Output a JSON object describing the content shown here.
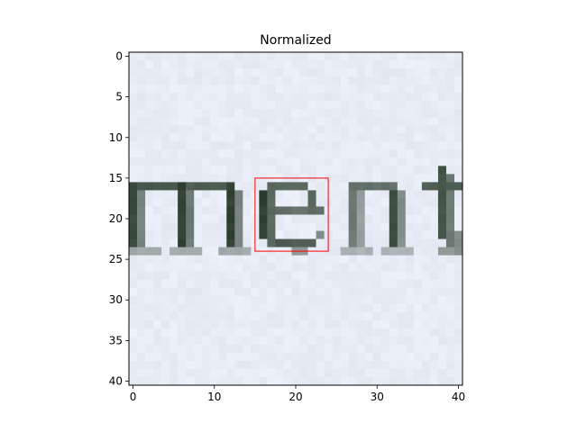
{
  "chart_data": {
    "type": "heatmap",
    "title": "Normalized",
    "xlabel": "",
    "ylabel": "",
    "grid": false,
    "xlim": [
      -0.5,
      40.5
    ],
    "ylim": [
      40.5,
      -0.5
    ],
    "y_axis_inverted": true,
    "grid_size": [
      41,
      41
    ],
    "x_ticks": [
      0,
      10,
      20,
      30,
      40
    ],
    "x_tick_labels": [
      "0",
      "10",
      "20",
      "30",
      "40"
    ],
    "y_ticks": [
      0,
      5,
      10,
      15,
      20,
      25,
      30,
      35,
      40
    ],
    "y_tick_labels": [
      "0",
      "5",
      "10",
      "15",
      "20",
      "25",
      "30",
      "35",
      "40"
    ],
    "image_content": "cropped grayscale text image showing letters 'ment'",
    "background_color": "#e8ecf6",
    "ink_color": "#1c2e1e",
    "annotations": [
      {
        "type": "rectangle",
        "color": "#ff0000",
        "x0": 15,
        "x1": 24,
        "y0": 15,
        "y1": 24
      }
    ]
  }
}
